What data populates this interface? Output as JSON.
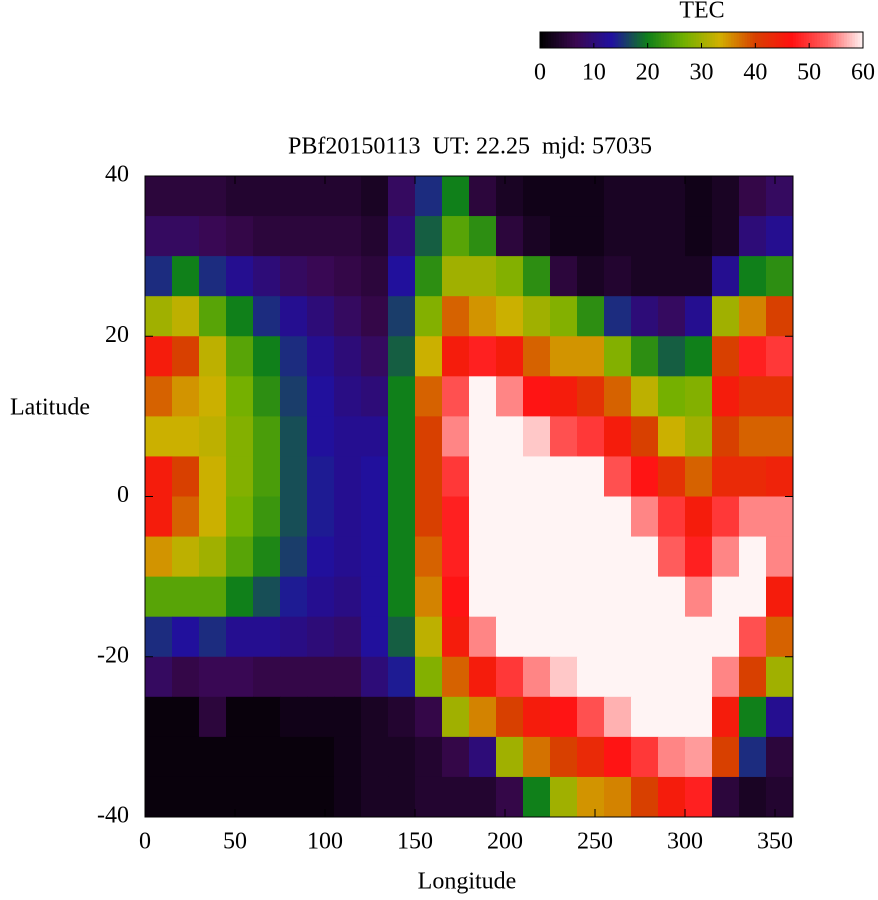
{
  "chart_data": {
    "type": "heatmap",
    "title": "PBf20150113  UT: 22.25  mjd: 57035",
    "x_label": "Longitude",
    "y_label": "Latitude",
    "colorbar_label": "TEC",
    "x": [
      7.5,
      22.5,
      37.5,
      52.5,
      67.5,
      82.5,
      97.5,
      112.5,
      127.5,
      142.5,
      157.5,
      172.5,
      187.5,
      202.5,
      217.5,
      232.5,
      247.5,
      262.5,
      277.5,
      292.5,
      307.5,
      322.5,
      337.5,
      352.5
    ],
    "y": [
      37.5,
      32.5,
      27.5,
      22.5,
      17.5,
      12.5,
      7.5,
      2.5,
      -2.5,
      -7.5,
      -12.5,
      -17.5,
      -22.5,
      -27.5,
      -32.5,
      -37.5
    ],
    "z": [
      [
        5,
        5,
        5,
        4,
        4,
        4,
        4,
        4,
        3,
        8,
        15,
        20,
        5,
        3,
        2,
        2,
        2,
        3,
        3,
        3,
        2,
        3,
        6,
        8
      ],
      [
        8,
        8,
        7,
        6,
        5,
        5,
        5,
        5,
        4,
        10,
        18,
        25,
        22,
        5,
        3,
        2,
        2,
        3,
        3,
        3,
        2,
        3,
        10,
        12
      ],
      [
        15,
        20,
        15,
        12,
        10,
        8,
        7,
        6,
        5,
        13,
        22,
        30,
        30,
        28,
        22,
        5,
        3,
        4,
        3,
        3,
        3,
        12,
        20,
        22
      ],
      [
        30,
        32,
        25,
        20,
        15,
        12,
        10,
        8,
        6,
        16,
        28,
        38,
        35,
        33,
        30,
        28,
        22,
        15,
        10,
        8,
        12,
        30,
        36,
        40
      ],
      [
        45,
        40,
        32,
        25,
        20,
        15,
        12,
        10,
        8,
        18,
        33,
        45,
        48,
        45,
        38,
        35,
        35,
        28,
        22,
        18,
        20,
        40,
        48,
        50
      ],
      [
        38,
        35,
        33,
        27,
        22,
        16,
        13,
        11,
        10,
        20,
        38,
        52,
        60,
        55,
        47,
        45,
        42,
        38,
        32,
        27,
        28,
        45,
        42,
        42
      ],
      [
        33,
        33,
        32,
        28,
        24,
        17,
        13,
        12,
        12,
        20,
        40,
        55,
        60,
        60,
        58,
        52,
        50,
        45,
        40,
        33,
        30,
        40,
        38,
        38
      ],
      [
        45,
        40,
        33,
        28,
        24,
        17,
        14,
        12,
        13,
        20,
        40,
        50,
        60,
        60,
        60,
        60,
        60,
        52,
        47,
        42,
        38,
        43,
        43,
        44
      ],
      [
        45,
        38,
        33,
        27,
        23,
        17,
        14,
        12,
        13,
        20,
        40,
        48,
        60,
        60,
        60,
        60,
        60,
        60,
        55,
        50,
        45,
        50,
        55,
        55
      ],
      [
        35,
        32,
        30,
        25,
        21,
        16,
        13,
        12,
        13,
        20,
        38,
        48,
        60,
        60,
        60,
        60,
        60,
        60,
        60,
        53,
        48,
        55,
        60,
        55
      ],
      [
        25,
        25,
        25,
        20,
        17,
        14,
        12,
        11,
        13,
        20,
        36,
        47,
        60,
        60,
        60,
        60,
        60,
        60,
        60,
        60,
        55,
        60,
        60,
        45
      ],
      [
        15,
        13,
        15,
        12,
        12,
        11,
        10,
        9,
        13,
        18,
        32,
        45,
        55,
        60,
        60,
        60,
        60,
        60,
        60,
        60,
        60,
        60,
        52,
        38
      ],
      [
        8,
        6,
        7,
        7,
        6,
        6,
        6,
        6,
        10,
        14,
        28,
        38,
        45,
        50,
        55,
        58,
        60,
        60,
        60,
        60,
        60,
        55,
        40,
        30
      ],
      [
        1,
        1,
        5,
        1,
        1,
        2,
        2,
        2,
        3,
        4,
        6,
        30,
        36,
        40,
        45,
        47,
        52,
        57,
        60,
        60,
        60,
        45,
        20,
        12
      ],
      [
        1,
        1,
        1,
        1,
        1,
        1,
        1,
        2,
        3,
        3,
        4,
        6,
        10,
        30,
        37,
        40,
        43,
        47,
        50,
        55,
        56,
        40,
        15,
        5
      ],
      [
        1,
        1,
        1,
        1,
        1,
        1,
        1,
        2,
        3,
        3,
        4,
        4,
        4,
        6,
        20,
        30,
        35,
        36,
        40,
        45,
        48,
        5,
        3,
        4
      ]
    ],
    "colormap": [
      "#000000",
      "#3a0850",
      "#2010a0",
      "#10801a",
      "#70b000",
      "#d0b000",
      "#d84000",
      "#ff1010",
      "#ff6060",
      "#fff4f4"
    ],
    "xlim": [
      0,
      360
    ],
    "xticks": [
      0,
      50,
      100,
      150,
      200,
      250,
      300,
      350
    ],
    "ylim": [
      -40,
      40
    ],
    "yticks": [
      -40,
      -20,
      0,
      20,
      40
    ],
    "zlim": [
      0,
      60
    ],
    "zticks": [
      0,
      10,
      20,
      30,
      40,
      50,
      60
    ]
  }
}
